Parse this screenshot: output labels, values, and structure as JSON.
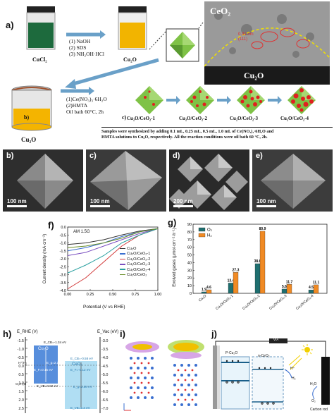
{
  "panel_a": {
    "label": "a)",
    "cucl2": "CuCl₂",
    "cu2o": "Cu₂O",
    "step1": [
      "(1) NaOH",
      "(2) SDS",
      "(3) NH₂OH·HCl"
    ],
    "step2": [
      "(1)Ce(NO₃)₃·6H₂O",
      "(2)HMTA",
      "Oil bath 60°C, 2h"
    ],
    "beaker_b": "b)",
    "cu2o_bottom": "Cu₂O",
    "tem_top": "CeO₂",
    "tem_bottom": "Cu₂O",
    "tem_lattice1": "0.31 nm",
    "tem_lattice2": "(111)",
    "c_label": "c)",
    "products": [
      "Cu₂O/CeO₂-1",
      "Cu₂O/CeO₂-2",
      "Cu₂O/CeO₂-3",
      "Cu₂O/CeO₂-4"
    ],
    "note_line1": "Samples were synthesized by adding 0.1 mL, 0.25 mL, 0.5 mL, 1.0 mL of Ce(NO₃)₃·6H₂O and",
    "note_line2": "HMTA solutions to Cu₂O, respectively. All the reaction conditions were oil bath 60 °C, 2h."
  },
  "sem": [
    {
      "label": "b)",
      "scale": "100 nm"
    },
    {
      "label": "c)",
      "scale": "100 nm"
    },
    {
      "label": "d)",
      "scale": "200 nm"
    },
    {
      "label": "e)",
      "scale": "100 nm"
    }
  ],
  "panel_f": {
    "label": "f)",
    "annotation": "AM 1.5G",
    "xlabel": "Potential (V vs RHE)",
    "ylabel": "Current density (mA·cm⁻²)",
    "xticks": [
      "0.00",
      "0.25",
      "0.50",
      "0.75",
      "1.00"
    ],
    "yticks": [
      "0.0",
      "-0.5",
      "-1.0",
      "-1.5",
      "-2.0",
      "-2.5",
      "-3.0",
      "-3.5",
      "-4.0"
    ],
    "legend": [
      "Cu₂O",
      "Cu₂O/CeO₂-1",
      "Cu₂O/CeO₂-2",
      "Cu₂O/CeO₂-3",
      "Cu₂O/CeO₂-4",
      "Cu₂O/CeO₂"
    ],
    "colors": [
      "#333333",
      "#3a6fd0",
      "#d23a3a",
      "#7a4fc0",
      "#2aa0a0",
      "#6a8f2a"
    ]
  },
  "panel_g": {
    "label": "g)",
    "ylabel": "Evolved gases (μmol·cm⁻²·h⁻¹)",
    "legend": [
      "O₂",
      "H₂"
    ],
    "colors": [
      "#1f6f70",
      "#f08a24"
    ],
    "yticks": [
      "0",
      "10",
      "20",
      "30",
      "40",
      "50",
      "60",
      "70",
      "80",
      "90"
    ]
  },
  "panel_h": {
    "label": "h)",
    "left_axis": "E_RHE (V)",
    "right_axis": "E_Vac (eV)",
    "left_ticks": [
      "-1.5",
      "-1.0",
      "-0.5",
      "0.0",
      "0.5",
      "1.0",
      "1.5",
      "2.0",
      "2.5"
    ],
    "right_ticks": [
      "-3.0",
      "-3.5",
      "-4.0",
      "-4.5",
      "-5.0",
      "-5.5",
      "-6.0",
      "-6.5",
      "-7.0"
    ],
    "cu2o": "Cu₂O",
    "ceo2": "CeO₂",
    "cb1": "E_CB=-1.34 eV",
    "vb1": "E_VB=0.82 eV",
    "eg1": "E_g=2.16 eV",
    "cb2": "E_CB=-0.58 eV",
    "vb2": "E_VB=2.3 eV",
    "eg2": "E_g=2.88 eV",
    "h_ref": "H⁺/H₂",
    "o_ref": "O₂/H₂O",
    "ef1": "E_F=0.15 eV",
    "ef2": "E_F=-0.12 eV"
  },
  "panel_i": {
    "label": "i)"
  },
  "panel_j": {
    "label": "j)",
    "left": "P-Cu₂O",
    "right": "n-CeO₂",
    "hplus": "H⁺",
    "h2": "H₂",
    "h2o": "H₂O",
    "o2": "O₂",
    "electrode": "Carbon rod",
    "meter": "V/A"
  },
  "chart_data": [
    {
      "type": "line",
      "title": "",
      "xlabel": "Potential (V vs RHE)",
      "ylabel": "Current density (mA·cm⁻²)",
      "xlim": [
        0.0,
        1.0
      ],
      "ylim": [
        -4.0,
        0.0
      ],
      "series": [
        {
          "name": "Cu₂O",
          "x": [
            0.0,
            0.2,
            0.4,
            0.6,
            0.8,
            1.0
          ],
          "y": [
            -1.1,
            -1.0,
            -0.8,
            -0.5,
            -0.25,
            -0.1
          ]
        },
        {
          "name": "Cu₂O/CeO₂-1",
          "x": [
            0.0,
            0.2,
            0.4,
            0.6,
            0.8,
            1.0
          ],
          "y": [
            -1.5,
            -1.3,
            -1.0,
            -0.6,
            -0.3,
            -0.1
          ]
        },
        {
          "name": "Cu₂O/CeO₂-2",
          "x": [
            0.0,
            0.2,
            0.4,
            0.6,
            0.8,
            1.0
          ],
          "y": [
            -3.9,
            -3.2,
            -2.2,
            -1.2,
            -0.5,
            -0.1
          ]
        },
        {
          "name": "Cu₂O/CeO₂-3",
          "x": [
            0.0,
            0.2,
            0.4,
            0.6,
            0.8,
            1.0
          ],
          "y": [
            -1.8,
            -1.6,
            -1.2,
            -0.8,
            -0.4,
            -0.1
          ]
        },
        {
          "name": "Cu₂O/CeO₂-4",
          "x": [
            0.0,
            0.2,
            0.4,
            0.6,
            0.8,
            1.0
          ],
          "y": [
            -2.9,
            -2.4,
            -1.8,
            -1.0,
            -0.5,
            -0.1
          ]
        },
        {
          "name": "Cu₂O/CeO₂",
          "x": [
            0.0,
            0.2,
            0.4,
            0.6,
            0.8,
            1.0
          ],
          "y": [
            -1.3,
            -1.2,
            -1.0,
            -0.7,
            -0.3,
            -0.1
          ]
        }
      ]
    },
    {
      "type": "bar",
      "title": "",
      "ylabel": "Evolved gases (μmol·cm⁻²·h⁻¹)",
      "ylim": [
        0,
        90
      ],
      "categories": [
        "Cu₂O",
        "Cu₂O/CeO₂-1",
        "Cu₂O/CeO₂-2",
        "Cu₂O/CeO₂-3",
        "Cu₂O/CeO₂-4"
      ],
      "series": [
        {
          "name": "O₂",
          "values": [
            1.9,
            13.4,
            38.6,
            5.6,
            4.5
          ]
        },
        {
          "name": "H₂",
          "values": [
            4.6,
            27.3,
            80.9,
            11.7,
            11.1
          ]
        }
      ]
    }
  ]
}
